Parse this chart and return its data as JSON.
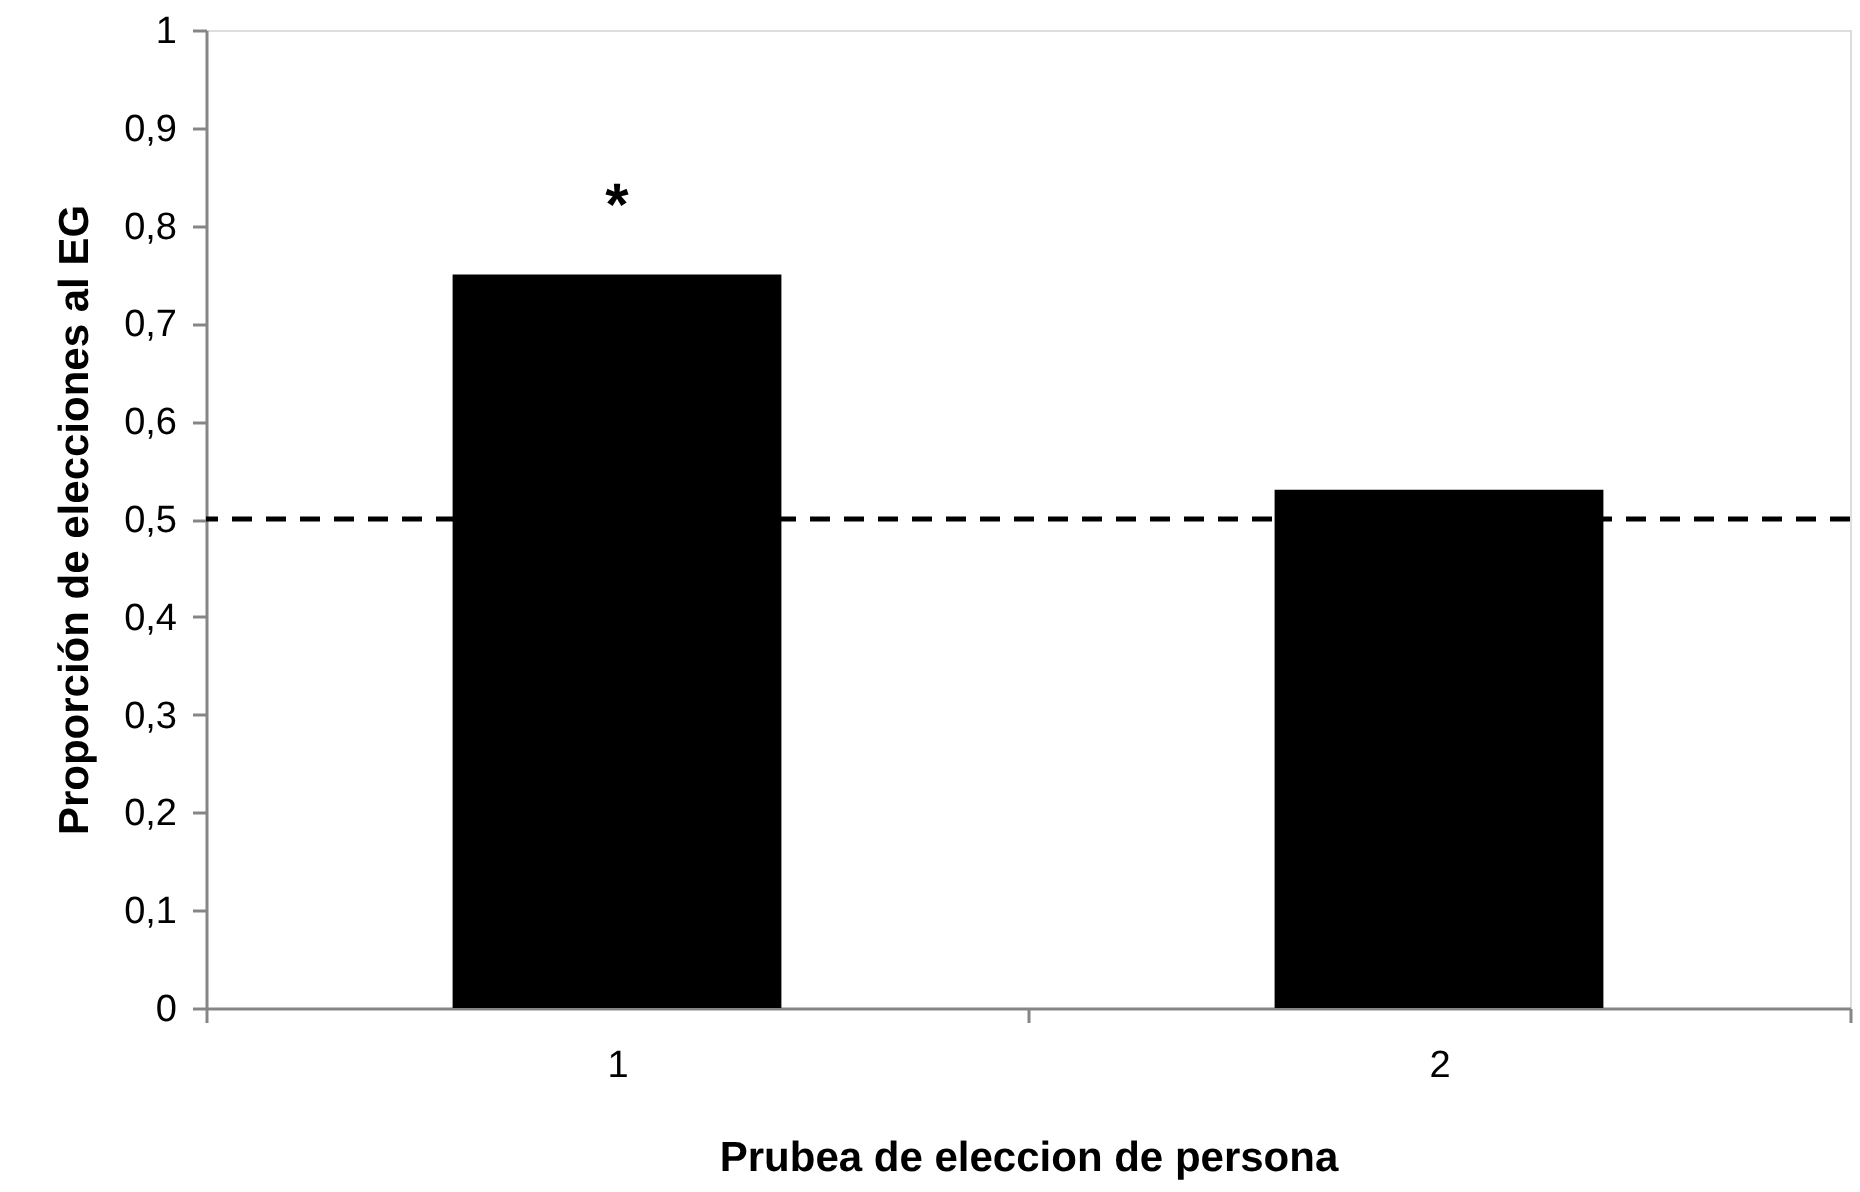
{
  "chart_data": {
    "type": "bar",
    "xlabel": "Prubea de eleccion de persona",
    "ylabel": "Proporción de elecciones al EG",
    "categories": [
      "1",
      "2"
    ],
    "values": [
      0.75,
      0.53
    ],
    "color": "#000000",
    "ylim": [
      0,
      1
    ],
    "yticks": [
      0,
      {
        "value": 0.1,
        "label": "0,1"
      },
      {
        "value": 0.2,
        "label": "0,2"
      },
      {
        "value": 0.3,
        "label": "0,3"
      },
      {
        "value": 0.4,
        "label": "0,4"
      },
      {
        "value": 0.5,
        "label": "0,5"
      },
      {
        "value": 0.6,
        "label": "0,6"
      },
      {
        "value": 0.7,
        "label": "0,7"
      },
      {
        "value": 0.8,
        "label": "0,8"
      },
      {
        "value": 0.9,
        "label": "0,9"
      },
      1
    ],
    "ref_lines": [
      {
        "axis": "y",
        "value": 0.5,
        "color": "#000000",
        "line_style": "dashed"
      }
    ],
    "annotations": [
      {
        "text": "*",
        "x": "1",
        "y": 0.75
      }
    ]
  }
}
